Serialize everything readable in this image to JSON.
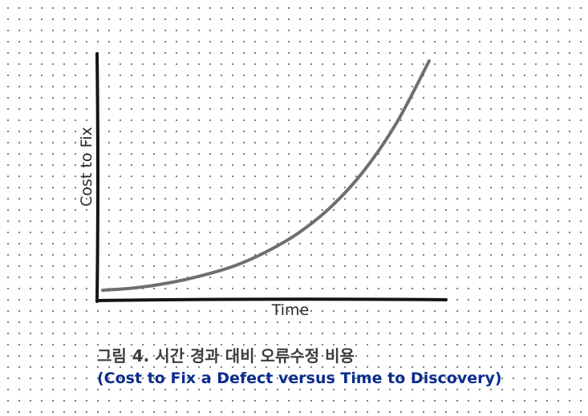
{
  "chart_data": {
    "type": "line",
    "title": "",
    "xlabel": "Time",
    "ylabel": "Cost to Fix",
    "xlim": [
      0,
      1
    ],
    "ylim": [
      0,
      1
    ],
    "grid": false,
    "legend": "none",
    "series": [
      {
        "x": [
          0,
          0.1,
          0.2,
          0.3,
          0.4,
          0.5,
          0.6,
          0.7,
          0.8,
          0.9,
          1.0
        ],
        "values": [
          0.04,
          0.05,
          0.07,
          0.1,
          0.14,
          0.2,
          0.28,
          0.39,
          0.54,
          0.74,
          1.0
        ]
      }
    ],
    "colors": {
      "axis": "#141414",
      "curve": "#6e6e6e"
    }
  },
  "caption": {
    "korean": "그림 4. 시간 경과 대비 오류수정 비용",
    "english": "(Cost to Fix a Defect versus Time to Discovery)"
  },
  "colors": {
    "caption_korean": "#3d3d3d",
    "caption_english": "#0b2c8f",
    "dot_grid": "#6f6f6f"
  }
}
